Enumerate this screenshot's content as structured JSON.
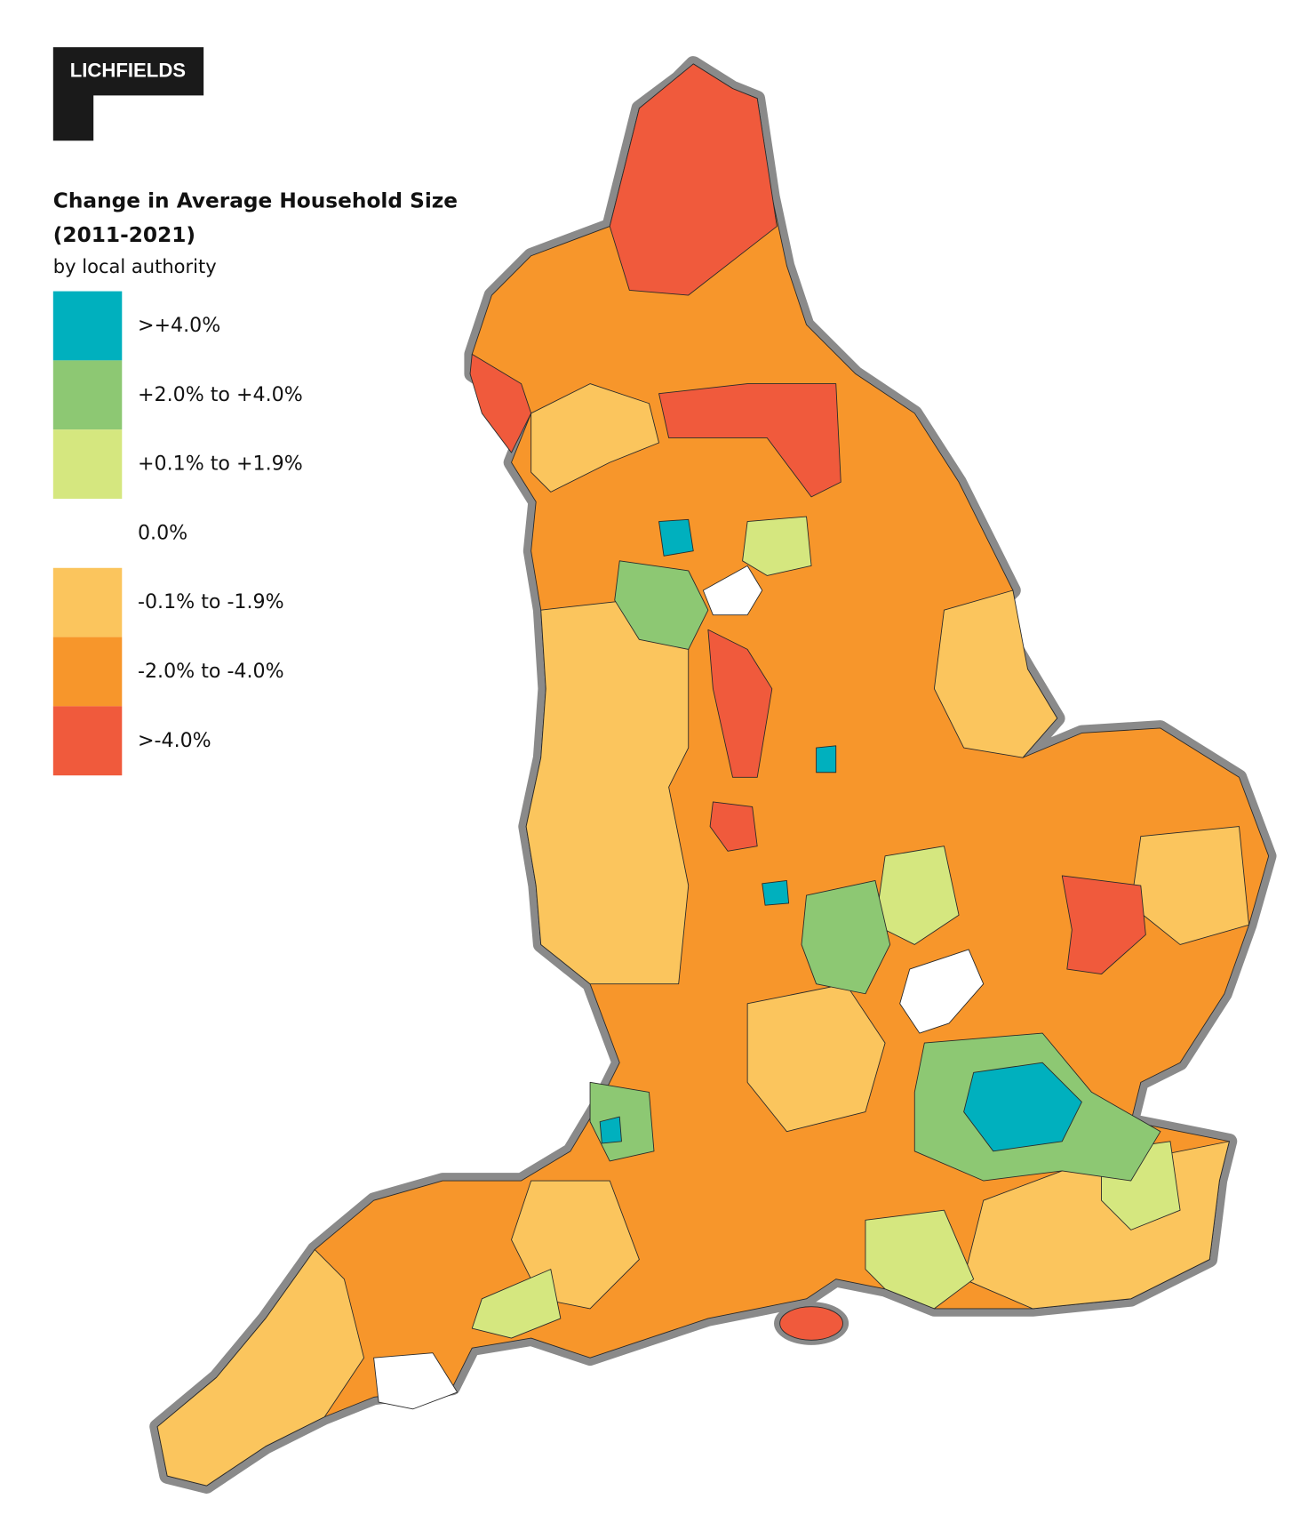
{
  "logo": "LICHFIELDS",
  "title": [
    "Change in Average Household Size",
    "(2011-2021)"
  ],
  "subtitle": "by local authority",
  "legend": [
    {
      "label": ">+4.0%",
      "color": "#00b0be"
    },
    {
      "label": "+2.0% to +4.0%",
      "color": "#8dc873"
    },
    {
      "label": "+0.1% to +1.9%",
      "color": "#d5e77f"
    },
    {
      "label": "0.0%",
      "color": "#ffffff"
    },
    {
      "label": "-0.1% to -1.9%",
      "color": "#fbc55d"
    },
    {
      "label": "-2.0% to -4.0%",
      "color": "#f7962b"
    },
    {
      "label": ">-4.0%",
      "color": "#f05a3c"
    }
  ]
}
